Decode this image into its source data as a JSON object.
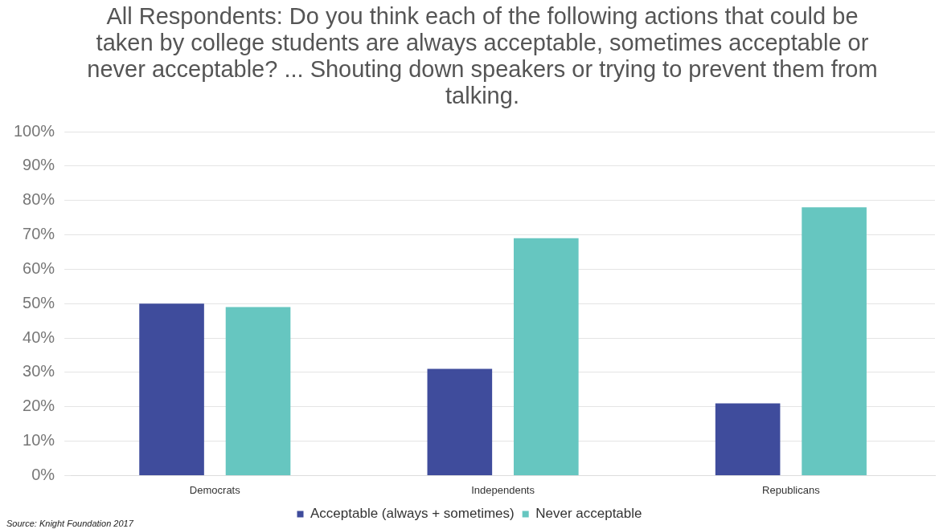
{
  "chart_data": {
    "type": "bar",
    "title": "All Respondents: Do you think each of the following actions that could be taken by college students are always acceptable, sometimes acceptable or never acceptable? ... Shouting down speakers or trying to prevent them from talking.",
    "categories": [
      "Democrats",
      "Independents",
      "Republicans"
    ],
    "series": [
      {
        "name": "Acceptable (always + sometimes)",
        "color": "#3f4c9c",
        "values": [
          50,
          31,
          21
        ]
      },
      {
        "name": "Never acceptable",
        "color": "#66c6c0",
        "values": [
          49,
          69,
          78
        ]
      }
    ],
    "ylim": [
      0,
      100
    ],
    "yticks": [
      {
        "value": 0,
        "label": "0%"
      },
      {
        "value": 10,
        "label": "10%"
      },
      {
        "value": 20,
        "label": "20%"
      },
      {
        "value": 30,
        "label": "30%"
      },
      {
        "value": 40,
        "label": "40%"
      },
      {
        "value": 50,
        "label": "50%"
      },
      {
        "value": 60,
        "label": "60%"
      },
      {
        "value": 70,
        "label": "70%"
      },
      {
        "value": 80,
        "label": "80%"
      },
      {
        "value": 90,
        "label": "90%"
      },
      {
        "value": 100,
        "label": "100%"
      }
    ],
    "grid": "y",
    "legend": "bottom",
    "annotations": [
      "Source: Knight Foundation 2017"
    ]
  }
}
